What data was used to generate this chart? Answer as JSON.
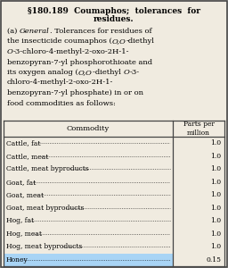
{
  "title_line1": "§180.189  Coumaphos;  tolerances  for",
  "title_line2": "residues.",
  "body_lines": [
    [
      "(a) ",
      false,
      "General",
      true,
      ". Tolerances for residues of",
      false
    ],
    [
      "the insecticide coumaphos (",
      false,
      "O,O",
      true,
      "-diethyl",
      false
    ],
    [
      "O",
      true,
      "-3-chloro-4-methyl-2-oxo-2H-1-",
      false
    ],
    [
      "benzopyran-7-yl phosphorothioate and",
      false
    ],
    [
      "its oxygen analog (",
      false,
      "O,O",
      true,
      "-diethyl ",
      false,
      "O",
      true,
      "-3-",
      false
    ],
    [
      "chloro-4-methyl-2-oxo-2H-1-",
      false
    ],
    [
      "benzopyran-7-yl phosphate) in or on",
      false
    ],
    [
      "food commodities as follows:",
      false
    ]
  ],
  "col1_header": "Commodity",
  "col2_header": "Parts per\nmillion",
  "rows": [
    [
      "Cattle, fat",
      "1.0"
    ],
    [
      "Cattle, meat",
      "1.0"
    ],
    [
      "Cattle, meat byproducts",
      "1.0"
    ],
    [
      "Goat, fat",
      "1.0"
    ],
    [
      "Goat, meat",
      "1.0"
    ],
    [
      "Goat, meat byproducts",
      "1.0"
    ],
    [
      "Hog, fat",
      "1.0"
    ],
    [
      "Hog, meat",
      "1.0"
    ],
    [
      "Hog, meat byproducts",
      "1.0"
    ],
    [
      "Honey",
      "0.15"
    ]
  ],
  "honey_highlight": "#a8d4f5",
  "bg_color": "#f0ebe0",
  "border_color": "#444444",
  "text_color": "#000000"
}
